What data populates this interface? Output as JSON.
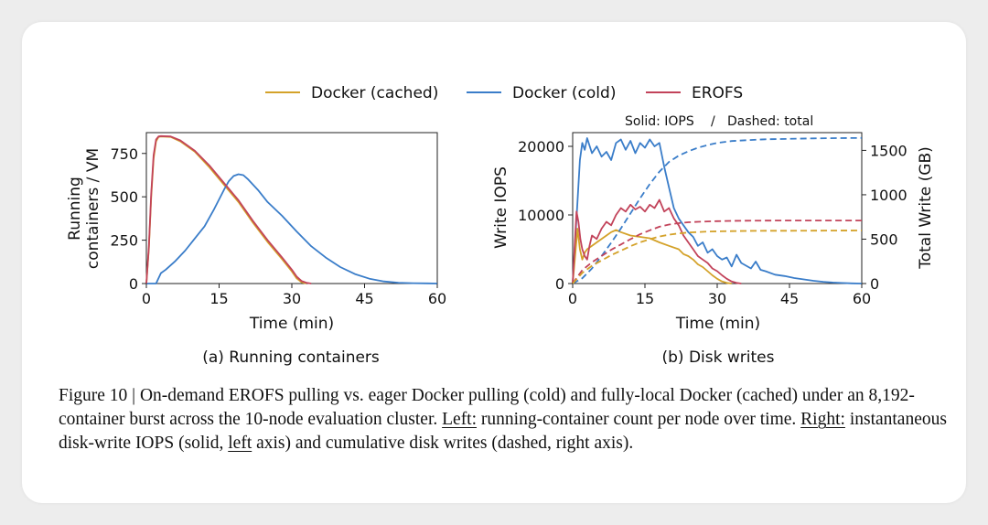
{
  "legend": [
    {
      "name": "Docker (cached)",
      "color": "#d4a22a"
    },
    {
      "name": "Docker (cold)",
      "color": "#3a7dc9"
    },
    {
      "name": "EROFS",
      "color": "#c2435a"
    }
  ],
  "annotation": {
    "solid_label": "Solid: IOPS",
    "separator": "/",
    "dashed_label": "Dashed: total"
  },
  "caption": {
    "lead": "Figure 10 | On-demand EROFS pulling vs. eager Docker pulling (cold) and fully-local Docker (cached) under an 8,192-container burst across the 10-node evaluation cluster.",
    "left_word": "Left:",
    "left_text": "running-container count per node over time.",
    "right_word": "Right:",
    "right_text_a": "instantaneous disk-write IOPS (solid,",
    "left_axis_word": "left",
    "right_text_b": "axis) and cumulative disk writes (dashed, right axis)."
  },
  "chart_data": [
    {
      "type": "line",
      "subtitle": "(a) Running containers",
      "xlabel": "Time (min)",
      "ylabel": "Running containers / VM",
      "xlim": [
        0,
        60
      ],
      "ylim": [
        0,
        870
      ],
      "xticks": [
        0,
        15,
        30,
        45,
        60
      ],
      "yticks": [
        0,
        250,
        500,
        750
      ],
      "grid": false,
      "series": [
        {
          "name": "Docker (cached)",
          "color": "#d4a22a",
          "x": [
            0,
            0.5,
            1,
            1.5,
            2,
            2.5,
            3,
            5,
            7,
            10,
            13,
            16,
            19,
            22,
            25,
            28,
            30,
            31,
            32,
            33
          ],
          "y": [
            0,
            200,
            500,
            720,
            820,
            845,
            848,
            845,
            820,
            760,
            670,
            570,
            470,
            350,
            240,
            140,
            70,
            30,
            8,
            0
          ]
        },
        {
          "name": "Docker (cold)",
          "color": "#3a7dc9",
          "x": [
            0,
            2,
            3,
            4,
            6,
            8,
            10,
            12,
            14,
            16,
            17,
            18,
            19,
            20,
            21,
            23,
            25,
            28,
            31,
            34,
            37,
            40,
            43,
            46,
            49,
            52,
            55,
            58,
            60
          ],
          "y": [
            0,
            0,
            60,
            80,
            130,
            190,
            260,
            330,
            430,
            540,
            590,
            620,
            630,
            625,
            600,
            540,
            470,
            390,
            300,
            215,
            150,
            95,
            55,
            28,
            12,
            5,
            2,
            1,
            0
          ]
        },
        {
          "name": "EROFS",
          "color": "#c2435a",
          "x": [
            0,
            0.5,
            1,
            1.5,
            2,
            2.5,
            3,
            5,
            7,
            10,
            13,
            16,
            19,
            22,
            25,
            28,
            30,
            31,
            32,
            33,
            34
          ],
          "y": [
            0,
            210,
            520,
            740,
            830,
            848,
            850,
            848,
            825,
            765,
            680,
            580,
            480,
            360,
            250,
            150,
            80,
            40,
            15,
            5,
            0
          ]
        }
      ]
    },
    {
      "type": "line",
      "subtitle": "(b) Disk writes",
      "xlabel": "Time (min)",
      "ylabel": "Write IOPS",
      "y2label": "Total Write (GB)",
      "xlim": [
        0,
        60
      ],
      "ylim": [
        0,
        22000
      ],
      "y2lim": [
        0,
        1700
      ],
      "xticks": [
        0,
        15,
        30,
        45,
        60
      ],
      "yticks": [
        0,
        10000,
        20000
      ],
      "y2ticks": [
        0,
        500,
        1000,
        1500
      ],
      "grid": false,
      "series": [
        {
          "name": "Docker (cold) IOPS",
          "color": "#3a7dc9",
          "dash": false,
          "x": [
            0,
            1,
            1.5,
            2,
            2.5,
            3,
            4,
            5,
            6,
            7,
            8,
            9,
            10,
            11,
            12,
            13,
            14,
            15,
            16,
            17,
            18,
            19,
            20,
            21,
            22,
            23,
            24,
            25,
            26,
            27,
            28,
            29,
            30,
            31,
            32,
            33,
            34,
            35,
            36,
            37,
            38,
            39,
            40,
            42,
            44,
            46,
            48,
            50,
            52,
            54,
            56,
            58,
            60
          ],
          "y": [
            0,
            12000,
            18000,
            20500,
            19500,
            21200,
            19000,
            20000,
            18500,
            19200,
            18000,
            20500,
            21000,
            19500,
            20800,
            19000,
            20500,
            19800,
            21000,
            20000,
            20500,
            17000,
            14000,
            11000,
            9500,
            8500,
            7500,
            6800,
            5500,
            6000,
            4500,
            5000,
            4000,
            3500,
            3800,
            2500,
            4200,
            3000,
            2600,
            2200,
            3200,
            2000,
            1800,
            1300,
            1100,
            800,
            600,
            400,
            250,
            150,
            80,
            30,
            0
          ]
        },
        {
          "name": "Docker (cached) IOPS",
          "color": "#d4a22a",
          "dash": false,
          "x": [
            0,
            1,
            1.5,
            2,
            2.5,
            3,
            4,
            5,
            6,
            7,
            8,
            9,
            10,
            12,
            14,
            16,
            18,
            20,
            22,
            23,
            24,
            25,
            26,
            27,
            28,
            29,
            30,
            31,
            32,
            33
          ],
          "y": [
            0,
            8000,
            5000,
            3500,
            4500,
            5000,
            5500,
            6000,
            6500,
            7000,
            7500,
            7800,
            7500,
            7000,
            6800,
            6600,
            6000,
            5500,
            5000,
            4300,
            4000,
            3500,
            2800,
            2400,
            1800,
            1200,
            700,
            300,
            100,
            0
          ]
        },
        {
          "name": "EROFS IOPS",
          "color": "#c2435a",
          "dash": false,
          "x": [
            0,
            0.8,
            1.2,
            1.6,
            2,
            2.5,
            3,
            3.5,
            4,
            5,
            6,
            7,
            8,
            9,
            10,
            11,
            12,
            13,
            14,
            15,
            16,
            17,
            18,
            19,
            20,
            21,
            22,
            23,
            24,
            25,
            26,
            27,
            28,
            29,
            30,
            31,
            32,
            33,
            34,
            35
          ],
          "y": [
            0,
            10500,
            9000,
            6500,
            5000,
            4000,
            3500,
            5500,
            7000,
            6500,
            8000,
            9000,
            8500,
            10000,
            11000,
            10500,
            11500,
            10800,
            11200,
            10500,
            11500,
            11000,
            12200,
            10500,
            11000,
            9500,
            8500,
            7000,
            6000,
            5000,
            4000,
            3500,
            3000,
            2200,
            1800,
            1200,
            700,
            300,
            100,
            0
          ]
        },
        {
          "name": "Docker (cold) total",
          "color": "#3a7dc9",
          "dash": true,
          "axis": "right",
          "x": [
            0,
            2,
            4,
            6,
            8,
            10,
            12,
            14,
            16,
            18,
            20,
            22,
            24,
            26,
            28,
            30,
            33,
            36,
            40,
            45,
            50,
            55,
            60
          ],
          "y": [
            0,
            60,
            170,
            310,
            460,
            620,
            790,
            960,
            1120,
            1260,
            1370,
            1440,
            1490,
            1530,
            1560,
            1585,
            1605,
            1615,
            1625,
            1630,
            1635,
            1638,
            1640
          ]
        },
        {
          "name": "EROFS total",
          "color": "#c2435a",
          "dash": true,
          "axis": "right",
          "x": [
            0,
            2,
            4,
            6,
            8,
            10,
            12,
            14,
            16,
            18,
            20,
            22,
            24,
            26,
            28,
            30,
            33,
            36,
            40,
            45,
            50,
            55,
            60
          ],
          "y": [
            0,
            150,
            240,
            310,
            380,
            440,
            500,
            555,
            600,
            640,
            665,
            680,
            690,
            695,
            700,
            703,
            706,
            708,
            709,
            710,
            710,
            710,
            710
          ]
        },
        {
          "name": "Docker (cached) total",
          "color": "#d4a22a",
          "dash": true,
          "axis": "right",
          "x": [
            0,
            2,
            4,
            6,
            8,
            10,
            12,
            14,
            16,
            18,
            20,
            22,
            24,
            26,
            28,
            30,
            33,
            36,
            40,
            45,
            50,
            55,
            60
          ],
          "y": [
            0,
            120,
            200,
            260,
            320,
            370,
            420,
            465,
            500,
            530,
            550,
            565,
            575,
            580,
            585,
            588,
            590,
            592,
            594,
            595,
            596,
            597,
            598
          ]
        }
      ]
    }
  ]
}
